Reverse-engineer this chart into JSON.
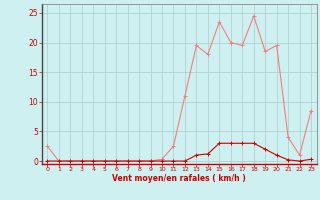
{
  "x": [
    0,
    1,
    2,
    3,
    4,
    5,
    6,
    7,
    8,
    9,
    10,
    11,
    12,
    13,
    14,
    15,
    16,
    17,
    18,
    19,
    20,
    21,
    22,
    23
  ],
  "y_rafales": [
    2.5,
    0,
    0,
    0,
    0,
    0,
    0,
    0,
    0,
    0,
    0.3,
    2.5,
    11,
    19.5,
    18,
    23.5,
    20,
    19.5,
    24.5,
    18.5,
    19.5,
    4,
    1,
    8.5
  ],
  "y_moyen": [
    0,
    0,
    0,
    0,
    0,
    0,
    0,
    0,
    0,
    0,
    0,
    0,
    0,
    1,
    1.2,
    3,
    3,
    3,
    3,
    2,
    1,
    0.2,
    0,
    0.3
  ],
  "color_rafales": "#f08080",
  "color_moyen": "#cc0000",
  "bg_color": "#cff0f0",
  "grid_color": "#aacccc",
  "xlabel": "Vent moyen/en rafales ( km/h )",
  "yticks": [
    0,
    5,
    10,
    15,
    20,
    25
  ],
  "xticks": [
    0,
    1,
    2,
    3,
    4,
    5,
    6,
    7,
    8,
    9,
    10,
    11,
    12,
    13,
    14,
    15,
    16,
    17,
    18,
    19,
    20,
    21,
    22,
    23
  ],
  "ylim": [
    -0.5,
    26.5
  ],
  "xlim": [
    -0.5,
    23.5
  ],
  "marker_size": 2.0,
  "line_width": 0.8
}
